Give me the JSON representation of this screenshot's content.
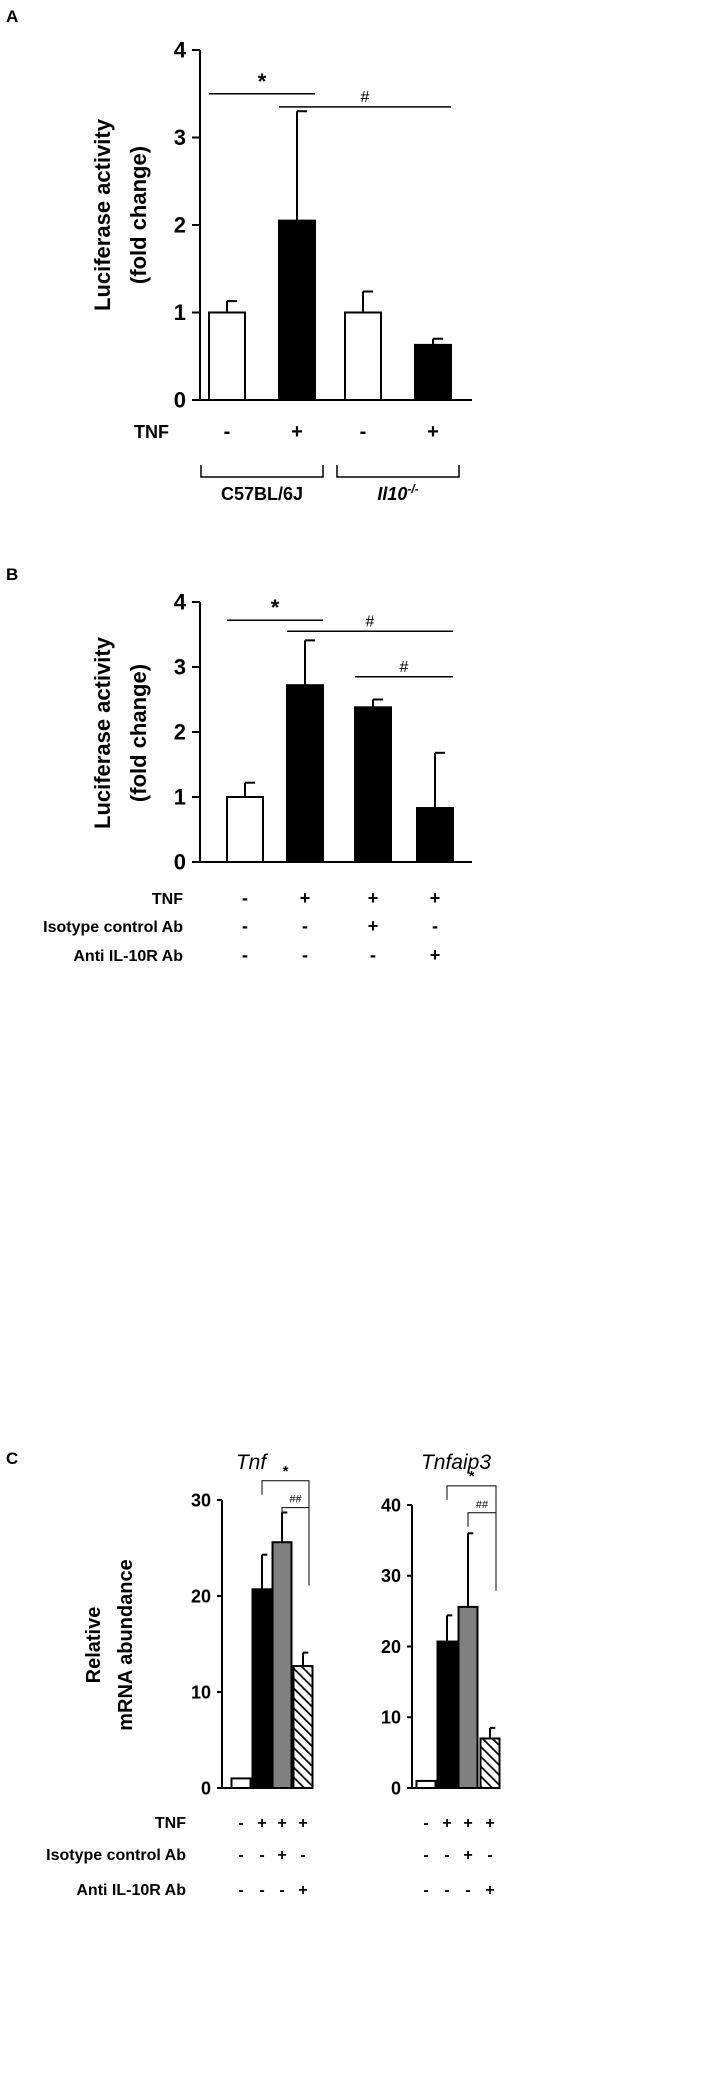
{
  "panels": {
    "A": {
      "letter": "A"
    },
    "B": {
      "letter": "B"
    },
    "C": {
      "letter": "C"
    }
  },
  "colors": {
    "white": "#ffffff",
    "black": "#000000",
    "gray": "#808080"
  },
  "chart_data": [
    {
      "id": "A",
      "type": "bar",
      "title": "",
      "ylabel": [
        "Luciferase activity",
        "(fold change)"
      ],
      "ylim": [
        0,
        4
      ],
      "yticks": [
        0,
        1,
        2,
        3,
        4
      ],
      "categories": [
        "C57BL/6J TNF-",
        "C57BL/6J TNF+",
        "Il10-/- TNF-",
        "Il10-/- TNF+"
      ],
      "values": [
        1.0,
        2.05,
        1.0,
        0.63
      ],
      "errors": [
        0.13,
        1.25,
        0.24,
        0.07
      ],
      "fills": [
        "white",
        "black",
        "white",
        "black"
      ],
      "conditions": [
        {
          "label": "TNF",
          "values": [
            "-",
            "+",
            "-",
            "+"
          ]
        }
      ],
      "groups": [
        {
          "label": "C57BL/6J",
          "italic": false,
          "span": [
            0,
            1
          ]
        },
        {
          "label": "Il10",
          "sup": "-/-",
          "italic": true,
          "span": [
            2,
            3
          ]
        }
      ],
      "significance": [
        {
          "from": 0,
          "to": 1,
          "label": "*",
          "y": 3.5
        },
        {
          "from": 1,
          "to": 3,
          "label": "#",
          "y": 3.35
        }
      ]
    },
    {
      "id": "B",
      "type": "bar",
      "title": "",
      "ylabel": [
        "Luciferase activity",
        "(fold change)"
      ],
      "ylim": [
        0,
        4
      ],
      "yticks": [
        0,
        1,
        2,
        3,
        4
      ],
      "categories": [
        "ctrl",
        "TNF",
        "TNF + Isotype control Ab",
        "TNF + Anti IL-10R Ab"
      ],
      "values": [
        1.0,
        2.72,
        2.38,
        0.83
      ],
      "errors": [
        0.22,
        0.69,
        0.12,
        0.85
      ],
      "fills": [
        "white",
        "black",
        "black",
        "black"
      ],
      "conditions": [
        {
          "label": "TNF",
          "values": [
            "-",
            "+",
            "+",
            "+"
          ]
        },
        {
          "label": "Isotype control Ab",
          "values": [
            "-",
            "-",
            "+",
            "-"
          ]
        },
        {
          "label": "Anti IL-10R Ab",
          "values": [
            "-",
            "-",
            "-",
            "+"
          ]
        }
      ],
      "significance": [
        {
          "from": 0,
          "to": 1,
          "label": "*",
          "y": 3.72
        },
        {
          "from": 1,
          "to": 3,
          "label": "#",
          "y": 3.55
        },
        {
          "from": 2,
          "to": 3,
          "label": "#",
          "y": 2.85
        }
      ]
    },
    {
      "id": "C1",
      "type": "bar",
      "title": "Tnf",
      "ylabel": [
        "Relative",
        "mRNA abundance"
      ],
      "ylim": [
        0,
        30
      ],
      "yticks": [
        0,
        10,
        20,
        30
      ],
      "categories": [
        "ctrl",
        "TNF",
        "TNF + Isotype control Ab",
        "TNF + Anti IL-10R Ab"
      ],
      "values": [
        1.0,
        20.7,
        25.6,
        12.7
      ],
      "errors": [
        0,
        3.6,
        3.1,
        1.4
      ],
      "fills": [
        "white",
        "black",
        "gray",
        "hatch"
      ],
      "conditions": [
        {
          "label": "TNF",
          "values": [
            "-",
            "+",
            "+",
            "+"
          ]
        },
        {
          "label": "Isotype control Ab",
          "values": [
            "-",
            "-",
            "+",
            "-"
          ]
        },
        {
          "label": "Anti IL-10R Ab",
          "values": [
            "-",
            "-",
            "-",
            "+"
          ]
        }
      ],
      "significance": [
        {
          "from": 1,
          "to": 3,
          "label": "*",
          "y": 32.0
        },
        {
          "from": 2,
          "to": 3,
          "label": "##",
          "y": 29.2
        }
      ]
    },
    {
      "id": "C2",
      "type": "bar",
      "title": "Tnfaip3",
      "ylabel": [],
      "ylim": [
        0,
        40
      ],
      "yticks": [
        0,
        10,
        20,
        30,
        40
      ],
      "categories": [
        "ctrl",
        "TNF",
        "TNF + Isotype control Ab",
        "TNF + Anti IL-10R Ab"
      ],
      "values": [
        1.0,
        20.7,
        25.6,
        7.0
      ],
      "errors": [
        0,
        3.7,
        10.4,
        1.5
      ],
      "fills": [
        "white",
        "black",
        "gray",
        "hatch"
      ],
      "conditions": [
        {
          "label": "",
          "values": [
            "-",
            "+",
            "+",
            "+"
          ]
        },
        {
          "label": "",
          "values": [
            "-",
            "-",
            "+",
            "-"
          ]
        },
        {
          "label": "",
          "values": [
            "-",
            "-",
            "-",
            "+"
          ]
        }
      ],
      "significance": [
        {
          "from": 1,
          "to": 3,
          "label": "*",
          "y": 42.7
        },
        {
          "from": 2,
          "to": 3,
          "label": "##",
          "y": 38.9
        }
      ]
    }
  ]
}
